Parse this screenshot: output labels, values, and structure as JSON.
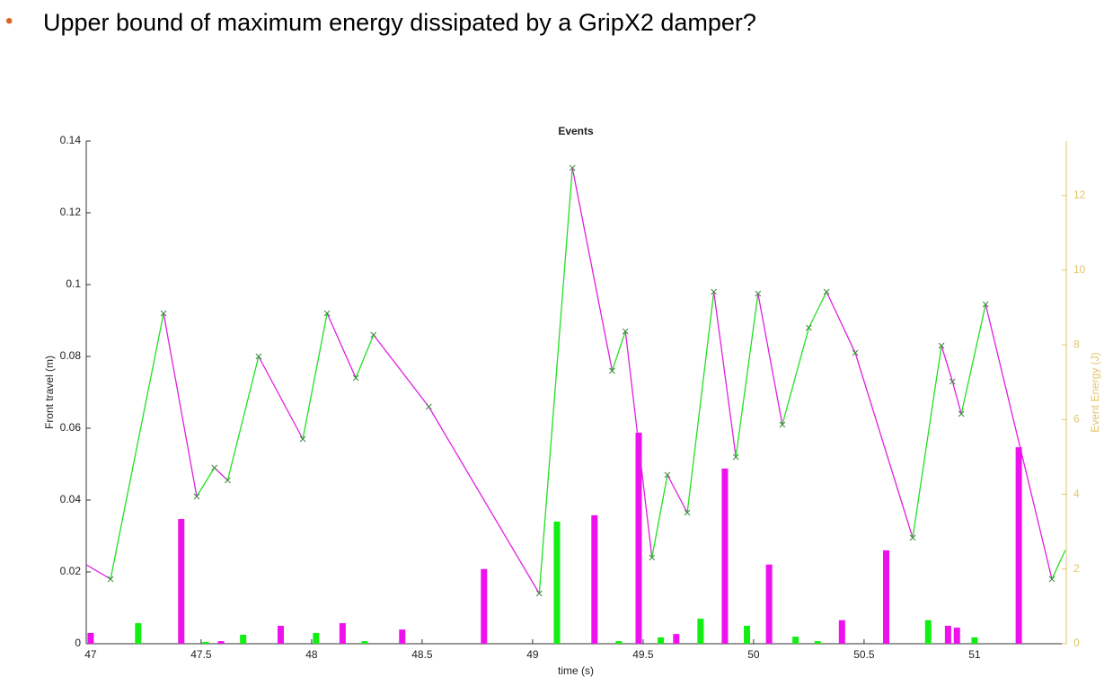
{
  "slide": {
    "bullet": "•",
    "title": "Upper bound of maximum energy dissipated by a GripX2 damper?"
  },
  "chart_data": {
    "type": "line",
    "title": "Events",
    "x_label": "time (s)",
    "y_label": "Front travel (m)",
    "y2_label": "Event Energy (J)",
    "xlim": [
      46.98,
      51.415
    ],
    "xticks": [
      47,
      47.5,
      48,
      48.5,
      49,
      49.5,
      50,
      50.5,
      51
    ],
    "ylim": [
      0,
      0.14
    ],
    "yticks": [
      0,
      0.02,
      0.04,
      0.06,
      0.08,
      0.1,
      0.12,
      0.14
    ],
    "y2lim": [
      0,
      13.46
    ],
    "y2ticks": [
      0,
      2,
      4,
      6,
      8,
      10,
      12
    ],
    "y2_color": "#e3c46a",
    "series": [
      {
        "type": "line",
        "rise_color": "#22e022",
        "fall_color": "#e020e0",
        "x": [
          46.98,
          47.09,
          47.33,
          47.48,
          47.56,
          47.62,
          47.76,
          47.96,
          48.07,
          48.2,
          48.28,
          48.53,
          49.03,
          49.18,
          49.36,
          49.42,
          49.54,
          49.61,
          49.7,
          49.82,
          49.92,
          50.02,
          50.13,
          50.25,
          50.33,
          50.46,
          50.72,
          50.85,
          50.9,
          50.94,
          51.05,
          51.35,
          51.41
        ],
        "values": [
          0.022,
          0.018,
          0.092,
          0.041,
          0.049,
          0.0455,
          0.08,
          0.057,
          0.092,
          0.074,
          0.086,
          0.066,
          0.014,
          0.1325,
          0.076,
          0.087,
          0.024,
          0.047,
          0.0365,
          0.098,
          0.052,
          0.0975,
          0.061,
          0.088,
          0.098,
          0.081,
          0.0295,
          0.083,
          0.073,
          0.064,
          0.0945,
          0.018,
          0.026
        ]
      },
      {
        "type": "bar",
        "axis": "y2",
        "color": "#11ee11",
        "x": [
          47.215,
          47.52,
          47.69,
          48.02,
          48.24,
          49.11,
          49.39,
          49.58,
          49.76,
          49.97,
          50.19,
          50.29,
          50.79,
          51.0
        ],
        "values": [
          0.55,
          0.05,
          0.24,
          0.29,
          0.07,
          3.27,
          0.07,
          0.17,
          0.67,
          0.48,
          0.19,
          0.07,
          0.63,
          0.17
        ]
      },
      {
        "type": "bar",
        "axis": "y2",
        "color": "#ee11ee",
        "x": [
          47.0,
          47.41,
          47.59,
          47.86,
          48.14,
          48.41,
          48.78,
          49.28,
          49.48,
          49.65,
          49.87,
          50.07,
          50.4,
          50.6,
          50.88,
          50.92,
          51.2
        ],
        "values": [
          0.29,
          3.34,
          0.07,
          0.48,
          0.55,
          0.38,
          2.0,
          3.44,
          5.65,
          0.26,
          4.69,
          2.12,
          0.63,
          2.5,
          0.48,
          0.43,
          5.26
        ]
      }
    ]
  }
}
